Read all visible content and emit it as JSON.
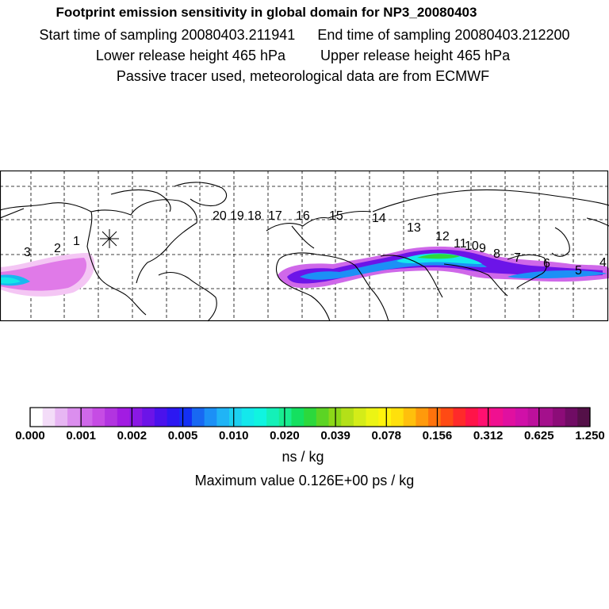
{
  "header": {
    "title": "Footprint emission sensitivity in global domain for NP3_20080403",
    "start": "Start time of sampling 20080403.211941",
    "end": "End time of sampling 20080403.212200",
    "lower": "Lower release height  465 hPa",
    "upper": "Upper release height  465 hPa",
    "note": "Passive tracer used, meteorological data are from ECMWF"
  },
  "trajectory_labels": [
    "1",
    "2",
    "3",
    "4",
    "5",
    "6",
    "7",
    "8",
    "9",
    "10",
    "11",
    "12",
    "13",
    "14",
    "15",
    "16",
    "17",
    "18",
    "19",
    "20"
  ],
  "release_marker": "sampling-location-asterisk",
  "colorbar": {
    "ticks": [
      "0.000",
      "0.001",
      "0.002",
      "0.005",
      "0.010",
      "0.020",
      "0.039",
      "0.078",
      "0.156",
      "0.312",
      "0.625",
      "1.250"
    ],
    "colors": [
      "#ffffff",
      "#f3dcf8",
      "#e7b6f3",
      "#db8eee",
      "#cf68e9",
      "#c64ce4",
      "#b234e0",
      "#a21ce2",
      "#8a18e4",
      "#6c14e8",
      "#4a12ec",
      "#2c18f2",
      "#1430f4",
      "#1868f2",
      "#1c90f6",
      "#20b4f6",
      "#1cd0f0",
      "#14e8ec",
      "#10f4e0",
      "#14f0b8",
      "#18ec90",
      "#14e060",
      "#2cd83c",
      "#5cd424",
      "#8cd818",
      "#b4e018",
      "#d4ec18",
      "#ecf414",
      "#fff40c",
      "#ffe00c",
      "#ffc00c",
      "#ff9a0c",
      "#ff720c",
      "#ff4a14",
      "#ff2a2a",
      "#ff1448",
      "#ff1070",
      "#f01090",
      "#e010a0",
      "#d010a8",
      "#bc109c",
      "#a4108c",
      "#8c0c78",
      "#700c64",
      "#541048"
    ],
    "units": "ns / kg"
  },
  "max_value": "Maximum value  0.126E+00 ps / kg"
}
